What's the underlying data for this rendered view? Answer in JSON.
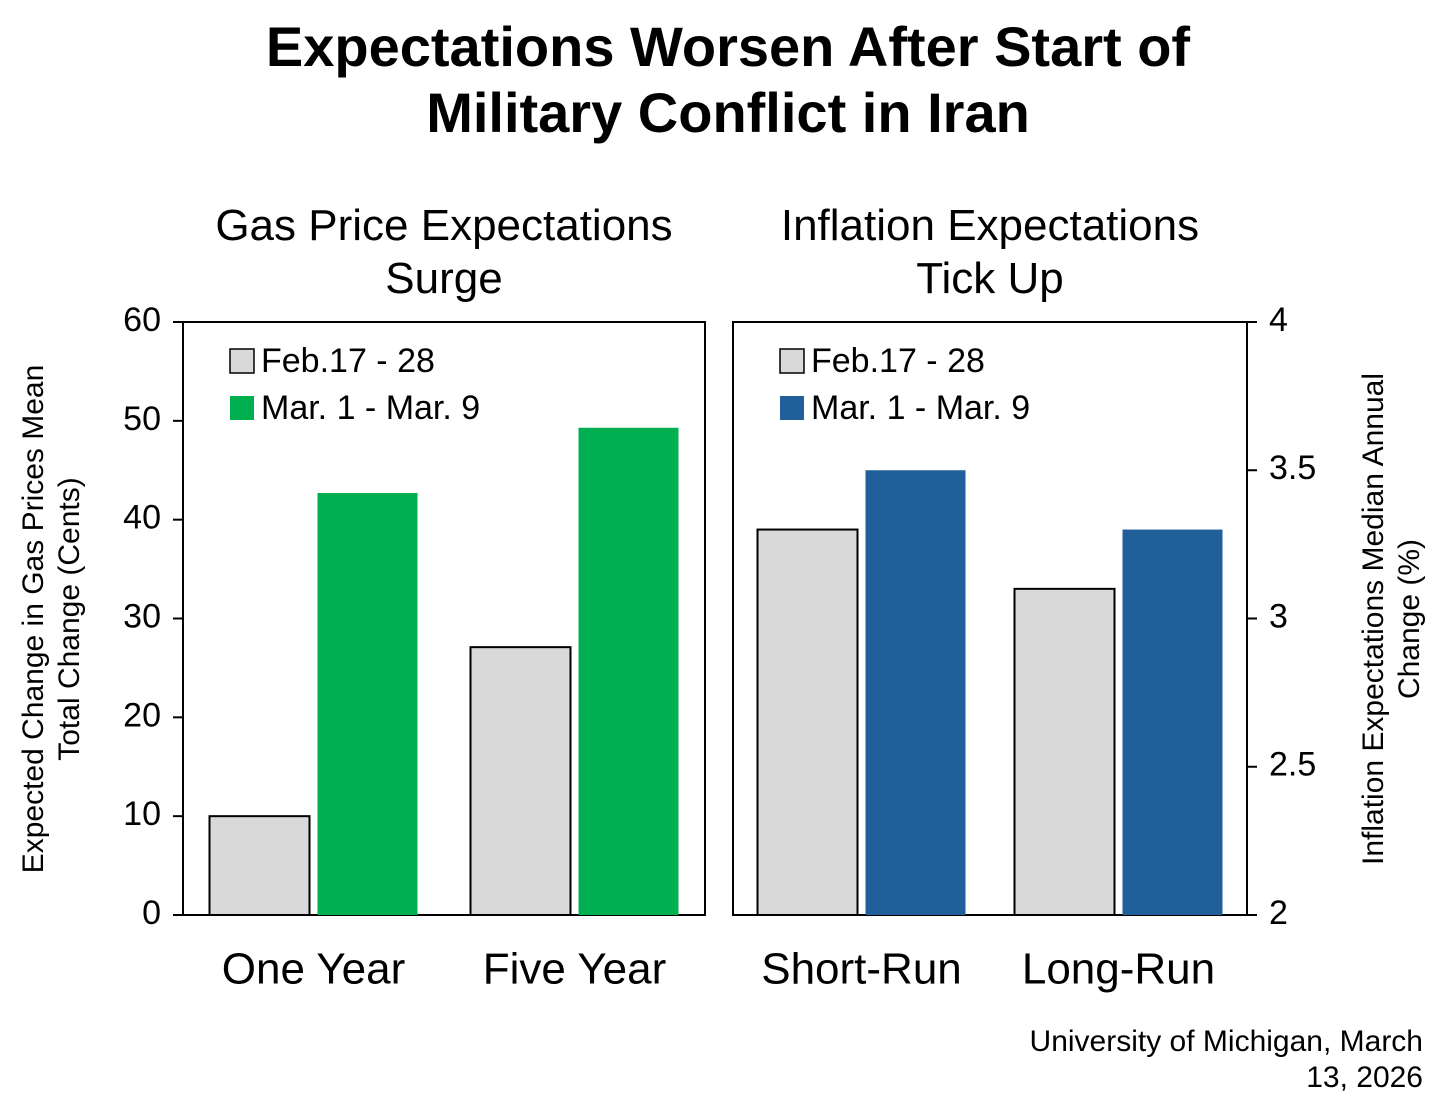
{
  "title": "Expectations Worsen After Start of Military Conflict in Iran",
  "source": "University of Michigan, March 13, 2026",
  "chart_data": [
    {
      "type": "bar",
      "title": "Gas Price Expectations Surge",
      "ylabel": "Expected Change in Gas Prices Mean Total Change (Cents)",
      "categories": [
        "One Year",
        "Five Year"
      ],
      "series": [
        {
          "name": "Feb.17 - 28",
          "color": "#d9d9d9",
          "values": [
            10,
            27.1
          ]
        },
        {
          "name": "Mar. 1 - Mar. 9",
          "color": "#00b050",
          "values": [
            42.7,
            49.3
          ]
        }
      ],
      "ylim": [
        0,
        60
      ],
      "yticks": [
        0,
        10,
        20,
        30,
        40,
        50,
        60
      ],
      "yaxis": "left"
    },
    {
      "type": "bar",
      "title": "Inflation Expectations Tick Up",
      "ylabel": "Inflation Expectations Median Annual Change (%)",
      "categories": [
        "Short-Run",
        "Long-Run"
      ],
      "series": [
        {
          "name": "Feb.17 - 28",
          "color": "#d9d9d9",
          "values": [
            3.3,
            3.1
          ]
        },
        {
          "name": "Mar. 1 - Mar. 9",
          "color": "#215f9a",
          "values": [
            3.5,
            3.3
          ]
        }
      ],
      "ylim": [
        2,
        4
      ],
      "yticks": [
        2,
        2.5,
        3,
        3.5,
        4
      ],
      "yaxis": "right"
    }
  ]
}
